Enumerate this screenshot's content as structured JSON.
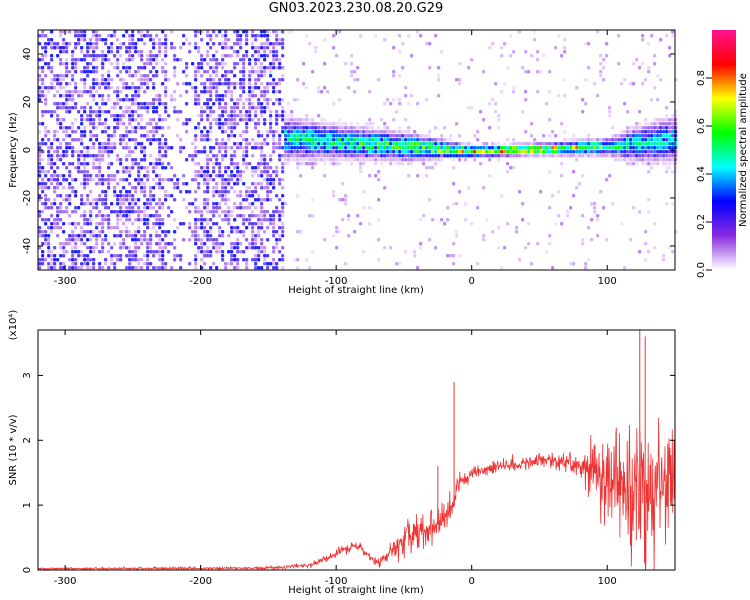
{
  "title": "GN03.2023.230.08.20.G29",
  "chart_data": [
    {
      "type": "heatmap",
      "xlabel": "Height of straight line (km)",
      "ylabel": "Frequency (Hz)",
      "xlim": [
        -320,
        150
      ],
      "ylim": [
        -50,
        50
      ],
      "x_ticks": [
        -300,
        -200,
        -100,
        0,
        100
      ],
      "y_ticks": [
        -40,
        -20,
        0,
        20,
        40
      ],
      "colorbar": {
        "label": "Normalized spectral amplitude",
        "range": [
          0,
          1
        ],
        "ticks": [
          "0.0",
          "0.2",
          "0.4",
          "0.6",
          "0.8"
        ],
        "colormap": [
          "#ffffff",
          "#8a2be2",
          "#0000ff",
          "#00ffff",
          "#00ff00",
          "#ffff00",
          "#ff0000",
          "#ff1493"
        ]
      },
      "ridge": {
        "x": [
          -320,
          -250,
          -200,
          -150,
          -100,
          -50,
          -20,
          0,
          50,
          100,
          120,
          150
        ],
        "center_hz": [
          0,
          3,
          5,
          6,
          4,
          2,
          1,
          0,
          1,
          2,
          3,
          5
        ],
        "half_width_hz": [
          40,
          35,
          12,
          8,
          6,
          5,
          3,
          2,
          2,
          3,
          6,
          9
        ],
        "peak_amplitude": [
          0.15,
          0.2,
          0.3,
          0.45,
          0.55,
          0.6,
          0.7,
          0.8,
          0.85,
          0.6,
          0.5,
          0.4
        ]
      }
    },
    {
      "type": "line",
      "xlabel": "Height of straight line (km)",
      "ylabel": "SNR (10 * v/v)",
      "y_scale_label": "(x10⁴)",
      "xlim": [
        -320,
        150
      ],
      "ylim": [
        0,
        3.7
      ],
      "x_ticks": [
        -300,
        -200,
        -100,
        0,
        100
      ],
      "y_ticks": [
        0,
        1,
        2,
        3
      ],
      "line_color": "#ee3333",
      "envelope": {
        "x": [
          -320,
          -150,
          -120,
          -100,
          -85,
          -75,
          -70,
          -60,
          -50,
          -40,
          -30,
          -20,
          -15,
          -10,
          0,
          20,
          40,
          60,
          80,
          100,
          110,
          120,
          130,
          140,
          150
        ],
        "center": [
          0.02,
          0.03,
          0.07,
          0.25,
          0.4,
          0.2,
          0.12,
          0.25,
          0.45,
          0.55,
          0.6,
          0.8,
          1.0,
          1.3,
          1.5,
          1.6,
          1.65,
          1.7,
          1.6,
          1.4,
          1.25,
          1.2,
          1.25,
          1.3,
          1.4
        ],
        "spread": [
          0.02,
          0.03,
          0.05,
          0.08,
          0.12,
          0.08,
          0.1,
          0.3,
          0.45,
          0.5,
          0.45,
          0.3,
          0.35,
          0.25,
          0.15,
          0.15,
          0.15,
          0.2,
          0.3,
          0.9,
          1.3,
          1.5,
          1.7,
          1.6,
          1.5
        ]
      },
      "spikes": [
        {
          "x": -13,
          "y": 2.9
        },
        {
          "x": -25,
          "y": 1.6
        },
        {
          "x": 124,
          "y": 3.7
        },
        {
          "x": 128,
          "y": 3.6
        }
      ]
    }
  ]
}
